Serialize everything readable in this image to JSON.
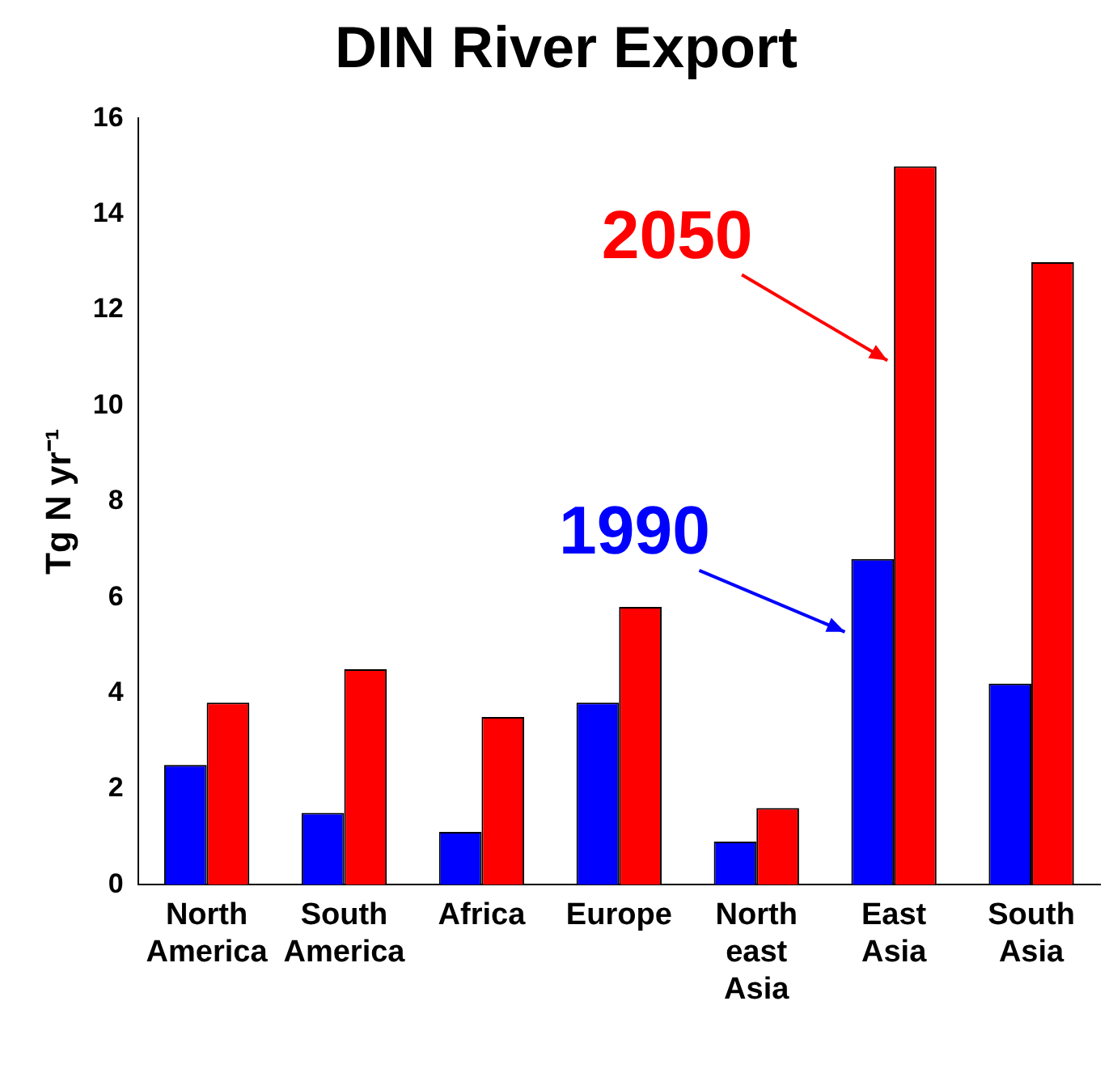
{
  "chart_data": {
    "type": "bar",
    "title": "DIN River Export",
    "ylabel": "Tg N yr⁻¹",
    "categories": [
      "North America",
      "South America",
      "Africa",
      "Europe",
      "North east Asia",
      "East Asia",
      "South Asia"
    ],
    "series": [
      {
        "name": "1990",
        "color": "#0000ff",
        "values": [
          2.5,
          1.5,
          1.1,
          3.8,
          0.9,
          6.8,
          4.2
        ]
      },
      {
        "name": "2050",
        "color": "#ff0000",
        "values": [
          3.8,
          4.5,
          3.5,
          5.8,
          1.6,
          15,
          13
        ]
      }
    ],
    "ylim": [
      0,
      16
    ],
    "yticks": [
      0,
      2,
      4,
      6,
      8,
      10,
      12,
      14,
      16
    ],
    "grid": false,
    "legend": false
  }
}
